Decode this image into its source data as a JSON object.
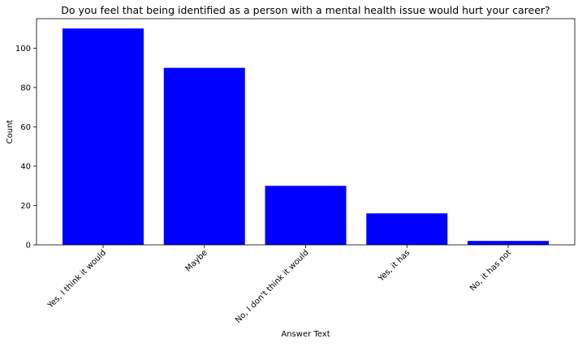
{
  "chart_data": {
    "type": "bar",
    "title": "Do you feel that being identified as a person with a mental health issue would hurt your career?",
    "xlabel": "Answer Text",
    "ylabel": "Count",
    "categories": [
      "Yes, I think it would",
      "Maybe",
      "No, I don't think it would",
      "Yes, it has",
      "No, it has not"
    ],
    "values": [
      110,
      90,
      30,
      16,
      2
    ],
    "ylim": [
      0,
      115
    ],
    "yticks": [
      0,
      20,
      40,
      60,
      80,
      100
    ],
    "bar_color": "#0000ff",
    "grid": false,
    "legend": "none",
    "tick_label_rotation": 45
  }
}
